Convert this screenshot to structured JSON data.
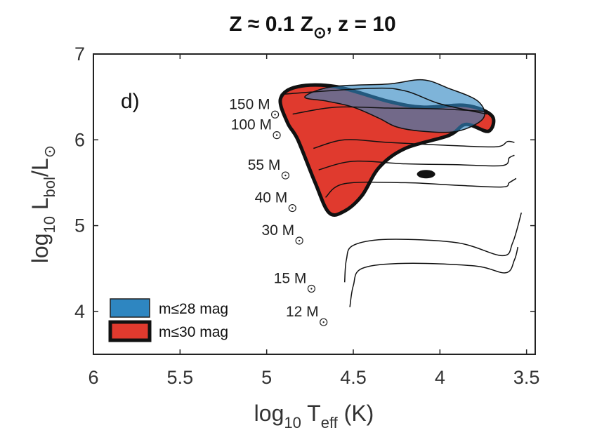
{
  "chart_data": {
    "type": "scatter",
    "title": {
      "prefix": "Z ≈ 0.1 Z",
      "sub": "⊙",
      "suffix": ", z = 10"
    },
    "panel_label": "d)",
    "xlabel": {
      "pre": "log",
      "sub1": "10",
      "mid": " T",
      "sub2": "eff",
      "post": " (K)"
    },
    "ylabel": {
      "pre": "log",
      "sub1": "10",
      "mid": " L",
      "sub2": "bol",
      "post": "/L",
      "sub3": "⊙"
    },
    "xlim": [
      6,
      3.45
    ],
    "ylim": [
      3.5,
      7
    ],
    "x_reversed": true,
    "x_ticks": [
      {
        "value": 6,
        "label": "6"
      },
      {
        "value": 5.5,
        "label": "5.5"
      },
      {
        "value": 5,
        "label": "5"
      },
      {
        "value": 4.5,
        "label": "4.5"
      },
      {
        "value": 4,
        "label": "4"
      },
      {
        "value": 3.5,
        "label": "3.5"
      }
    ],
    "y_ticks": [
      {
        "value": 4,
        "label": "4"
      },
      {
        "value": 5,
        "label": "5"
      },
      {
        "value": 6,
        "label": "6"
      },
      {
        "value": 7,
        "label": "7"
      }
    ],
    "grid": false,
    "legend_position": "bottom-left",
    "legend": [
      {
        "label": "m≤28 mag",
        "color": "#2e86c1"
      },
      {
        "label": "m≤30 mag",
        "color": "#e03a2e"
      }
    ],
    "tracks": [
      {
        "mass": "150 M",
        "label_at": [
          4.98,
          6.36
        ],
        "points": [
          [
            4.92,
            6.53
          ],
          [
            4.4,
            6.6
          ],
          [
            4.2,
            6.57
          ],
          [
            4.0,
            6.42
          ],
          [
            3.73,
            6.3
          ]
        ]
      },
      {
        "mass": "100 M",
        "label_at": [
          4.97,
          6.12
        ],
        "points": [
          [
            4.85,
            6.3
          ],
          [
            4.6,
            6.38
          ],
          [
            4.3,
            6.37
          ],
          [
            4.0,
            6.36
          ],
          [
            3.73,
            6.33
          ]
        ]
      },
      {
        "mass": "55 M",
        "label_at": [
          4.92,
          5.65
        ],
        "points": [
          [
            4.73,
            5.9
          ],
          [
            4.55,
            6.0
          ],
          [
            4.3,
            5.97
          ],
          [
            3.9,
            5.93
          ],
          [
            3.67,
            5.92
          ],
          [
            3.61,
            5.98
          ],
          [
            3.57,
            5.97
          ]
        ]
      },
      {
        "mass": "40 M",
        "label_at": [
          4.88,
          5.27
        ],
        "points": [
          [
            4.7,
            5.65
          ],
          [
            4.5,
            5.75
          ],
          [
            4.2,
            5.72
          ],
          [
            3.9,
            5.71
          ],
          [
            3.64,
            5.7
          ],
          [
            3.6,
            5.79
          ],
          [
            3.57,
            5.82
          ]
        ]
      },
      {
        "mass": "30 M",
        "label_at": [
          4.84,
          4.89
        ],
        "points": [
          [
            4.66,
            5.33
          ],
          [
            4.55,
            5.49
          ],
          [
            4.2,
            5.5
          ],
          [
            3.9,
            5.47
          ],
          [
            3.64,
            5.45
          ],
          [
            3.6,
            5.5
          ],
          [
            3.56,
            5.55
          ]
        ]
      },
      {
        "mass": "15 M",
        "label_at": [
          4.77,
          4.33
        ],
        "points": [
          [
            4.55,
            4.34
          ],
          [
            4.54,
            4.6
          ],
          [
            4.5,
            4.77
          ],
          [
            4.3,
            4.84
          ],
          [
            3.9,
            4.8
          ],
          [
            3.64,
            4.65
          ],
          [
            3.58,
            4.8
          ],
          [
            3.53,
            5.15
          ]
        ]
      },
      {
        "mass": "12 M",
        "label_at": [
          4.7,
          3.94
        ],
        "points": [
          [
            4.52,
            4.05
          ],
          [
            4.5,
            4.3
          ],
          [
            4.45,
            4.5
          ],
          [
            4.2,
            4.56
          ],
          [
            3.8,
            4.53
          ],
          [
            3.62,
            4.45
          ],
          [
            3.57,
            4.6
          ],
          [
            3.55,
            4.75
          ]
        ]
      }
    ],
    "regions": [
      {
        "name": "m≤30 mag",
        "color": "#e03a2e",
        "polygon": [
          [
            4.92,
            6.48
          ],
          [
            4.82,
            6.62
          ],
          [
            4.6,
            6.62
          ],
          [
            4.3,
            6.45
          ],
          [
            4.1,
            6.38
          ],
          [
            3.85,
            6.4
          ],
          [
            3.7,
            6.28
          ],
          [
            3.72,
            6.1
          ],
          [
            3.85,
            6.18
          ],
          [
            3.95,
            6.05
          ],
          [
            4.2,
            5.9
          ],
          [
            4.35,
            5.68
          ],
          [
            4.45,
            5.35
          ],
          [
            4.55,
            5.17
          ],
          [
            4.64,
            5.15
          ],
          [
            4.72,
            5.5
          ],
          [
            4.82,
            6.0
          ],
          [
            4.88,
            6.2
          ]
        ]
      },
      {
        "name": "m≤28 mag",
        "color": "#2e86c1",
        "polygon": [
          [
            4.78,
            6.5
          ],
          [
            4.62,
            6.62
          ],
          [
            4.3,
            6.65
          ],
          [
            4.1,
            6.7
          ],
          [
            3.95,
            6.6
          ],
          [
            3.78,
            6.45
          ],
          [
            3.75,
            6.25
          ],
          [
            3.9,
            6.1
          ],
          [
            4.1,
            6.1
          ],
          [
            4.25,
            6.15
          ],
          [
            4.35,
            6.25
          ],
          [
            4.5,
            6.38
          ],
          [
            4.65,
            6.45
          ]
        ]
      }
    ],
    "blobs": [
      {
        "x": 4.08,
        "y": 5.6
      }
    ]
  }
}
